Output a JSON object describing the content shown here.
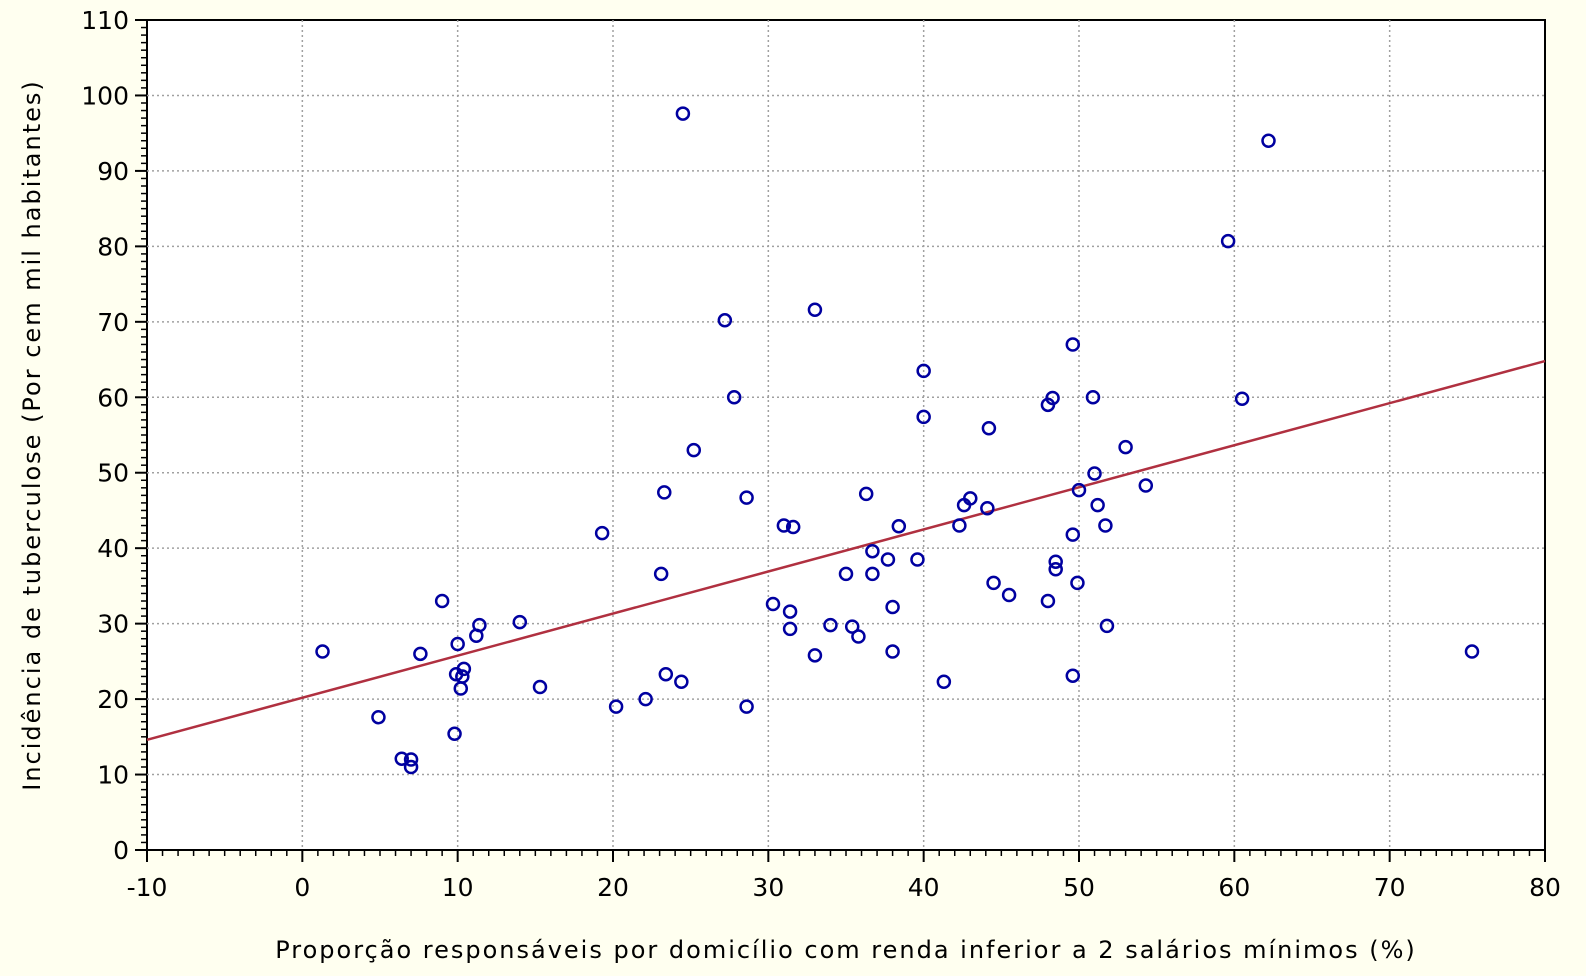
{
  "chart_data": {
    "type": "scatter",
    "title": "",
    "xlabel": "Proporção responsáveis por domicílio com renda inferior a 2 salários mínimos (%)",
    "ylabel": "Incidência de tuberculose (Por cem mil habitantes)",
    "xlim": [
      -10,
      80
    ],
    "ylim": [
      0,
      110
    ],
    "xticks": [
      -10,
      0,
      10,
      20,
      30,
      40,
      50,
      60,
      70,
      80
    ],
    "yticks": [
      0,
      10,
      20,
      30,
      40,
      50,
      60,
      70,
      80,
      90,
      100,
      110
    ],
    "grid": true,
    "colors": {
      "background": "#fffff0",
      "plot_background": "#ffffff",
      "points": "#0000a0",
      "fit_line": "#b03040",
      "grid": "#a0a0a0"
    },
    "series": [
      {
        "points": [
          [
            1.3,
            26.3
          ],
          [
            4.9,
            17.6
          ],
          [
            6.4,
            12.1
          ],
          [
            7.0,
            11.0
          ],
          [
            7.0,
            12.0
          ],
          [
            7.6,
            26.0
          ],
          [
            9.0,
            33.0
          ],
          [
            9.8,
            15.4
          ],
          [
            9.9,
            23.3
          ],
          [
            10.0,
            27.3
          ],
          [
            10.2,
            21.4
          ],
          [
            10.3,
            23.0
          ],
          [
            10.4,
            24.0
          ],
          [
            11.2,
            28.4
          ],
          [
            11.4,
            29.8
          ],
          [
            14.0,
            30.2
          ],
          [
            15.3,
            21.6
          ],
          [
            19.3,
            42.0
          ],
          [
            20.2,
            19.0
          ],
          [
            22.1,
            20.0
          ],
          [
            23.1,
            36.6
          ],
          [
            23.3,
            47.4
          ],
          [
            23.4,
            23.3
          ],
          [
            24.4,
            22.3
          ],
          [
            24.5,
            97.6
          ],
          [
            25.2,
            53.0
          ],
          [
            27.2,
            70.2
          ],
          [
            27.8,
            60.0
          ],
          [
            28.6,
            46.7
          ],
          [
            28.6,
            19.0
          ],
          [
            30.3,
            32.6
          ],
          [
            31.0,
            43.0
          ],
          [
            31.4,
            31.6
          ],
          [
            31.4,
            29.3
          ],
          [
            31.6,
            42.8
          ],
          [
            33.0,
            25.8
          ],
          [
            33.0,
            71.6
          ],
          [
            34.0,
            29.8
          ],
          [
            35.0,
            36.6
          ],
          [
            35.4,
            29.6
          ],
          [
            35.8,
            28.3
          ],
          [
            36.3,
            47.2
          ],
          [
            36.7,
            39.6
          ],
          [
            36.7,
            36.6
          ],
          [
            37.7,
            38.5
          ],
          [
            38.0,
            32.2
          ],
          [
            38.0,
            26.3
          ],
          [
            38.4,
            42.9
          ],
          [
            39.6,
            38.5
          ],
          [
            40.0,
            63.5
          ],
          [
            40.0,
            57.4
          ],
          [
            41.3,
            22.3
          ],
          [
            42.3,
            43.0
          ],
          [
            42.6,
            45.7
          ],
          [
            43.0,
            46.6
          ],
          [
            44.1,
            45.3
          ],
          [
            44.2,
            55.9
          ],
          [
            44.5,
            35.4
          ],
          [
            45.5,
            33.8
          ],
          [
            48.0,
            59.0
          ],
          [
            48.0,
            33.0
          ],
          [
            48.3,
            59.9
          ],
          [
            48.5,
            38.2
          ],
          [
            48.5,
            37.2
          ],
          [
            49.6,
            67.0
          ],
          [
            49.6,
            41.8
          ],
          [
            49.6,
            23.1
          ],
          [
            49.9,
            35.4
          ],
          [
            50.0,
            47.7
          ],
          [
            50.9,
            60.0
          ],
          [
            51.0,
            49.9
          ],
          [
            51.2,
            45.7
          ],
          [
            51.7,
            43.0
          ],
          [
            51.8,
            29.7
          ],
          [
            53.0,
            53.4
          ],
          [
            54.3,
            48.3
          ],
          [
            59.6,
            80.7
          ],
          [
            60.5,
            59.8
          ],
          [
            62.2,
            94.0
          ],
          [
            75.3,
            26.3
          ]
        ]
      }
    ],
    "fit_line": {
      "x": [
        -10,
        80
      ],
      "y": [
        14.6,
        64.8
      ]
    }
  }
}
